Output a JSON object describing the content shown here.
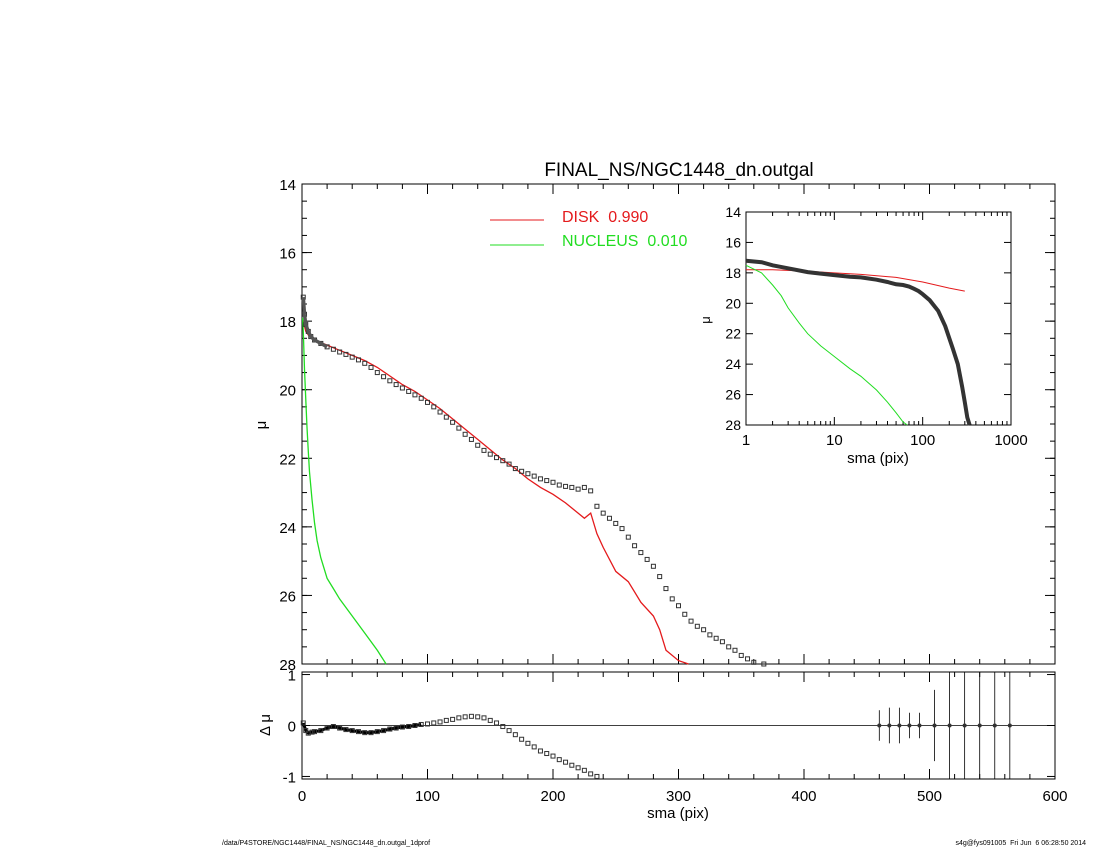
{
  "footer": {
    "left": "/data/P4STORE/NGC1448/FINAL_NS/NGC1448_dn.outgal_1dprof",
    "right": "s4g@fys091005  Fri Jun  6 06:28:50 2014"
  },
  "colors": {
    "disk": "#e41a1c",
    "nucleus": "#22dd22",
    "data": "#333333"
  },
  "chart_data": [
    {
      "type": "line",
      "title": "FINAL_NS/NGC1448_dn.outgal",
      "xlabel": "",
      "ylabel": "μ",
      "xlim": [
        0,
        600
      ],
      "ylim": [
        28,
        14
      ],
      "xticks": [
        0,
        100,
        200,
        300,
        400,
        500,
        600
      ],
      "yticks": [
        14,
        16,
        18,
        20,
        22,
        24,
        26,
        28
      ],
      "legend_position": "top-center",
      "series": [
        {
          "name": "DISK  0.990",
          "color": "#e41a1c",
          "x": [
            1,
            3,
            6,
            10,
            20,
            30,
            40,
            50,
            60,
            70,
            80,
            90,
            100,
            110,
            120,
            130,
            140,
            150,
            160,
            170,
            180,
            190,
            200,
            210,
            215,
            220,
            225,
            230,
            235,
            240,
            250,
            260,
            270,
            280,
            285,
            290,
            300,
            308
          ],
          "y": [
            18.0,
            18.3,
            18.45,
            18.55,
            18.7,
            18.85,
            19.0,
            19.15,
            19.35,
            19.6,
            19.85,
            20.05,
            20.3,
            20.55,
            20.85,
            21.15,
            21.45,
            21.75,
            22.05,
            22.3,
            22.6,
            22.85,
            23.05,
            23.3,
            23.45,
            23.6,
            23.75,
            23.6,
            24.2,
            24.6,
            25.3,
            25.6,
            26.2,
            26.6,
            27.0,
            27.6,
            27.9,
            28.1
          ]
        },
        {
          "name": "NUCLEUS  0.010",
          "color": "#22dd22",
          "x": [
            0.5,
            1,
            2,
            3,
            4,
            5,
            6,
            8,
            10,
            12,
            15,
            20,
            25,
            30,
            40,
            50,
            60,
            67
          ],
          "y": [
            17.9,
            18.3,
            19.4,
            20.3,
            21.1,
            21.8,
            22.4,
            23.2,
            23.9,
            24.4,
            24.9,
            25.5,
            25.8,
            26.1,
            26.6,
            27.1,
            27.6,
            28.0
          ]
        },
        {
          "name": "",
          "color": "#333333",
          "marker": "square",
          "x": [
            1,
            2,
            3,
            5,
            7,
            10,
            15,
            20,
            25,
            30,
            35,
            40,
            45,
            50,
            55,
            60,
            65,
            70,
            75,
            80,
            85,
            90,
            95,
            100,
            105,
            110,
            115,
            120,
            125,
            130,
            135,
            140,
            145,
            150,
            155,
            160,
            165,
            170,
            175,
            180,
            185,
            190,
            195,
            200,
            205,
            210,
            215,
            220,
            225,
            230,
            235,
            240,
            245,
            250,
            255,
            260,
            265,
            270,
            275,
            280,
            285,
            290,
            295,
            300,
            305,
            310,
            315,
            320,
            325,
            330,
            335,
            340,
            345,
            350,
            355,
            360,
            368
          ],
          "y": [
            17.3,
            17.8,
            18.1,
            18.3,
            18.45,
            18.55,
            18.65,
            18.75,
            18.82,
            18.9,
            18.97,
            19.05,
            19.13,
            19.23,
            19.35,
            19.5,
            19.62,
            19.74,
            19.85,
            19.95,
            20.05,
            20.15,
            20.25,
            20.37,
            20.5,
            20.65,
            20.8,
            20.95,
            21.12,
            21.3,
            21.45,
            21.62,
            21.77,
            21.88,
            21.98,
            22.07,
            22.17,
            22.3,
            22.38,
            22.45,
            22.52,
            22.6,
            22.65,
            22.7,
            22.78,
            22.82,
            22.85,
            22.9,
            22.85,
            22.95,
            23.4,
            23.6,
            23.75,
            23.9,
            24.05,
            24.3,
            24.55,
            24.75,
            24.95,
            25.15,
            25.45,
            25.8,
            26.1,
            26.3,
            26.55,
            26.75,
            26.9,
            27.0,
            27.15,
            27.25,
            27.35,
            27.5,
            27.6,
            27.75,
            27.85,
            27.95,
            28.0
          ]
        }
      ]
    },
    {
      "type": "line",
      "title": "",
      "xlabel": "sma (pix)",
      "ylabel": "μ",
      "x_scale": "log",
      "xlim": [
        1,
        1000
      ],
      "ylim": [
        28,
        14
      ],
      "xticks": [
        1,
        10,
        100,
        1000
      ],
      "yticks": [
        14,
        16,
        18,
        20,
        22,
        24,
        26,
        28
      ],
      "series": [
        {
          "name": "DISK",
          "color": "#e41a1c",
          "x": [
            1,
            2,
            5,
            10,
            20,
            50,
            100,
            200,
            300
          ],
          "y": [
            17.8,
            17.8,
            17.9,
            18.0,
            18.1,
            18.3,
            18.6,
            19.0,
            19.2
          ]
        },
        {
          "name": "NUCLEUS",
          "color": "#22dd22",
          "x": [
            1,
            1.5,
            2,
            2.5,
            3,
            4,
            5,
            7,
            10,
            15,
            20,
            30,
            40,
            50,
            60,
            67
          ],
          "y": [
            17.5,
            18.0,
            18.8,
            19.5,
            20.3,
            21.3,
            22.0,
            22.8,
            23.5,
            24.3,
            24.8,
            25.7,
            26.5,
            27.2,
            27.8,
            28.1
          ]
        },
        {
          "name": "",
          "color": "#333333",
          "x": [
            1,
            1.5,
            2,
            3,
            5,
            7,
            10,
            15,
            20,
            30,
            40,
            50,
            60,
            70,
            80,
            90,
            100,
            120,
            150,
            180,
            200,
            220,
            250,
            280,
            300,
            320,
            340
          ],
          "y": [
            17.2,
            17.3,
            17.5,
            17.7,
            17.95,
            18.05,
            18.15,
            18.25,
            18.3,
            18.45,
            18.6,
            18.75,
            18.8,
            18.9,
            19.05,
            19.2,
            19.4,
            19.8,
            20.5,
            21.5,
            22.3,
            23.0,
            24.0,
            25.5,
            26.5,
            27.5,
            28.2
          ]
        }
      ]
    },
    {
      "type": "scatter",
      "title": "",
      "xlabel": "sma (pix)",
      "ylabel": "Δ μ",
      "xlim": [
        0,
        600
      ],
      "ylim": [
        -1.05,
        1.05
      ],
      "xticks": [
        0,
        100,
        200,
        300,
        400,
        500,
        600
      ],
      "yticks": [
        -1,
        0,
        1
      ],
      "series": [
        {
          "name": "",
          "marker": "square",
          "x": [
            1,
            3,
            5,
            8,
            10,
            15,
            20,
            25,
            30,
            35,
            40,
            45,
            50,
            55,
            60,
            65,
            70,
            75,
            80,
            85,
            90,
            95,
            100,
            105,
            110,
            115,
            120,
            125,
            130,
            135,
            140,
            145,
            150,
            155,
            160,
            165,
            170,
            175,
            180,
            185,
            190,
            195,
            200,
            205,
            210,
            215,
            220,
            225,
            230,
            235
          ],
          "y": [
            0.05,
            -0.1,
            -0.15,
            -0.13,
            -0.12,
            -0.1,
            -0.05,
            -0.02,
            -0.05,
            -0.08,
            -0.1,
            -0.12,
            -0.14,
            -0.14,
            -0.12,
            -0.1,
            -0.07,
            -0.05,
            -0.03,
            -0.02,
            0.0,
            0.02,
            0.03,
            0.05,
            0.07,
            0.1,
            0.12,
            0.15,
            0.17,
            0.18,
            0.17,
            0.15,
            0.1,
            0.05,
            -0.02,
            -0.1,
            -0.18,
            -0.27,
            -0.35,
            -0.42,
            -0.5,
            -0.55,
            -0.6,
            -0.67,
            -0.72,
            -0.78,
            -0.83,
            -0.88,
            -0.95,
            -1.0
          ]
        },
        {
          "name": "",
          "marker": "errorbar",
          "x": [
            460,
            468,
            476,
            484,
            492,
            504,
            516,
            528,
            540,
            552,
            564
          ],
          "y": [
            0,
            0,
            0,
            0,
            0,
            0,
            0,
            0,
            0,
            0,
            0
          ],
          "err": [
            0.3,
            0.35,
            0.35,
            0.25,
            0.25,
            0.7,
            1.05,
            1.05,
            1.05,
            1.05,
            1.05
          ]
        }
      ]
    }
  ]
}
